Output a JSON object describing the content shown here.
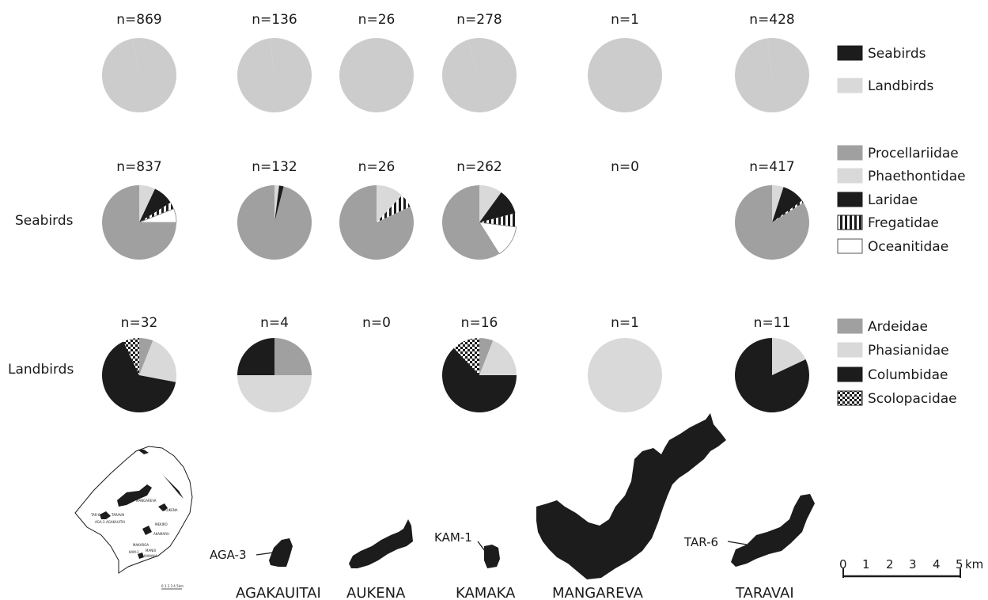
{
  "colors": {
    "seabirds": "#1c1c1c",
    "landbirds": "#d9d9d9",
    "Procellariidae": "#a0a0a0",
    "Phaethontidae": "#d9d9d9",
    "Laridae": "#1c1c1c",
    "Fregatidae": "stripes",
    "Oceanitidae": "#ffffff",
    "Ardeidae": "#a0a0a0",
    "Phasianidae": "#d9d9d9",
    "Columbidae": "#1c1c1c",
    "Scolopacidae": "checker",
    "island_fill": "#1c1c1c"
  },
  "islands": [
    "AGAKAUITAI",
    "AUKENA",
    "KAMAKA",
    "MANGAREVA",
    "TARAVAI"
  ],
  "site_labels": [
    "AGA-3",
    "KAM-1",
    "TAR-6"
  ],
  "scale_bar": {
    "ticks": [
      "0",
      "1",
      "2",
      "3",
      "4",
      "5"
    ],
    "unit": "km"
  },
  "inset_map": {
    "labels": [
      "MANGAREVA",
      "AUKENA",
      "TARAVAI",
      "AGAKAUITAI",
      "MEKIRO",
      "AKAMARU",
      "MAKAROA",
      "MANUI",
      "KAMAKA",
      "TAR-6",
      "AGA-3",
      "KAM-1"
    ],
    "scale_text": "0 1 2 3 4 5km"
  },
  "chart_data": [
    {
      "type": "pie",
      "row_label": "",
      "legend": [
        "Seabirds",
        "Landbirds"
      ],
      "panels": [
        {
          "n_label": "n=869",
          "values": [
            97,
            3
          ]
        },
        {
          "n_label": "n=136",
          "values": [
            98,
            2
          ]
        },
        {
          "n_label": "n=26",
          "values": [
            100,
            0
          ]
        },
        {
          "n_label": "n=278",
          "values": [
            95,
            5
          ]
        },
        {
          "n_label": "n=1",
          "values": [
            0,
            100
          ]
        },
        {
          "n_label": "n=428",
          "values": [
            98,
            2
          ]
        }
      ]
    },
    {
      "type": "pie",
      "row_label": "Seabirds",
      "legend": [
        "Procellariidae",
        "Phaethontidae",
        "Laridae",
        "Fregatidae",
        "Oceanitidae"
      ],
      "panels": [
        {
          "n_label": "n=837",
          "values": [
            0,
            7,
            9,
            3,
            6
          ],
          "rest": "Procellariidae"
        },
        {
          "n_label": "n=132",
          "values": [
            0,
            2,
            2,
            0,
            0
          ],
          "rest": "Procellariidae"
        },
        {
          "n_label": "n=26",
          "values": [
            0,
            12,
            0,
            6,
            0
          ],
          "rest": "Procellariidae"
        },
        {
          "n_label": "n=262",
          "values": [
            0,
            10,
            11,
            6,
            14
          ],
          "rest": "Procellariidae"
        },
        {
          "n_label": "n=0",
          "values": []
        },
        {
          "n_label": "n=417",
          "values": [
            0,
            5,
            10,
            1,
            0
          ],
          "rest": "Procellariidae"
        }
      ]
    },
    {
      "type": "pie",
      "row_label": "Landbirds",
      "legend": [
        "Ardeidae",
        "Phasianidae",
        "Columbidae",
        "Scolopacidae"
      ],
      "panels": [
        {
          "n_label": "n=32",
          "values": [
            6,
            22,
            65,
            7
          ]
        },
        {
          "n_label": "n=4",
          "values": [
            25,
            50,
            25,
            0
          ]
        },
        {
          "n_label": "n=0",
          "values": []
        },
        {
          "n_label": "n=16",
          "values": [
            6,
            19,
            63,
            12
          ]
        },
        {
          "n_label": "n=1",
          "values": [
            0,
            100,
            0,
            0
          ]
        },
        {
          "n_label": "n=11",
          "values": [
            0,
            18,
            82,
            0
          ]
        }
      ]
    }
  ]
}
